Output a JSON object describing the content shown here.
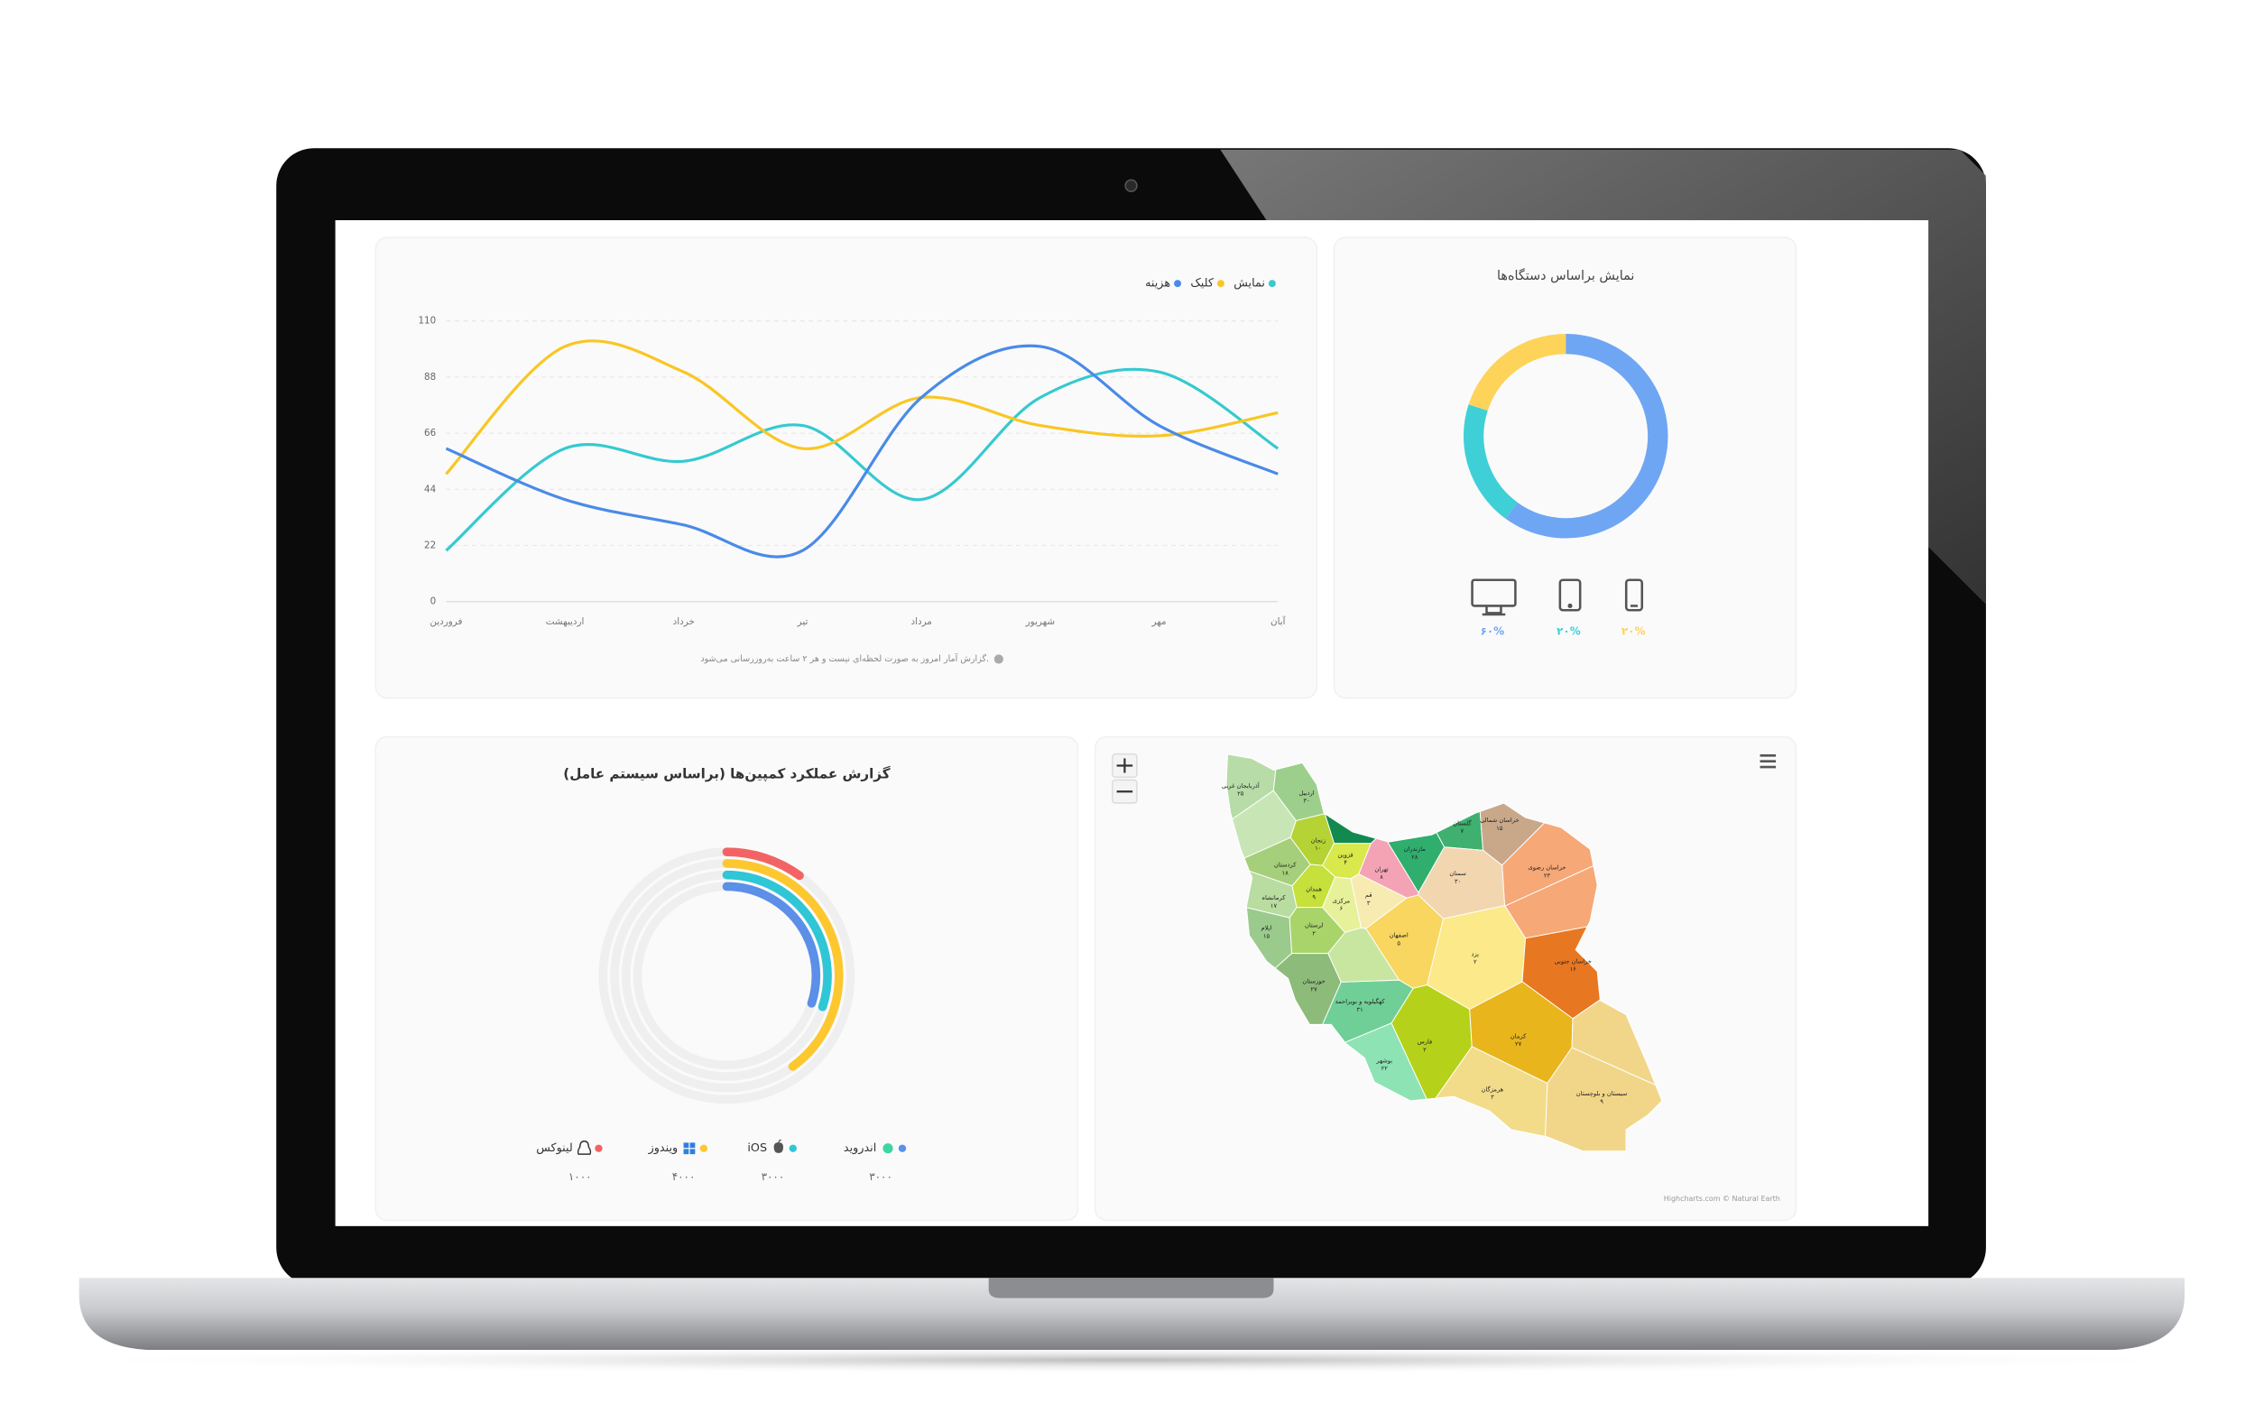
{
  "chart_data": [
    {
      "type": "line",
      "categories": [
        "فروردین",
        "اردیبهشت",
        "خرداد",
        "تیر",
        "مرداد",
        "شهریور",
        "مهر",
        "آبان"
      ],
      "series": [
        {
          "name": "نمایش",
          "color": "#36c9d0",
          "values": [
            20,
            60,
            55,
            69,
            40,
            80,
            90,
            60
          ]
        },
        {
          "name": "کلیک",
          "color": "#f9c623",
          "values": [
            50,
            100,
            90,
            60,
            80,
            69,
            65,
            74
          ]
        },
        {
          "name": "هزینه",
          "color": "#4a8ae8",
          "values": [
            60,
            40,
            30,
            20,
            80,
            100,
            69,
            50
          ]
        }
      ],
      "ylim": [
        0,
        110
      ],
      "yticks": [
        0,
        22,
        44,
        66,
        88,
        110
      ],
      "grid": true,
      "note": "گزارش آمار امروز به صورت لحظه‌ای نیست و هر ۲ ساعت به‌روزرسانی می‌شود."
    },
    {
      "type": "donut",
      "title": "نمایش براساس دستگاه‌ها",
      "values": [
        60,
        20,
        20
      ],
      "value_labels": [
        "۶۰%",
        "۲۰%",
        "۲۰%"
      ],
      "colors": [
        "#6fa6f4",
        "#3ed0d6",
        "#fdd35a"
      ]
    },
    {
      "type": "radial-bar",
      "title": "گزارش عملکرد کمپین‌ها (براساس سیستم عامل)",
      "categories": [
        "اندروید",
        "iOS",
        "ویندوز",
        "لینوکس"
      ],
      "values": [
        3000,
        3000,
        4000,
        1000
      ],
      "value_labels": [
        "۳۰۰۰",
        "۳۰۰۰",
        "۴۰۰۰",
        "۱۰۰۰"
      ],
      "colors": [
        "#5b8fe8",
        "#2fc6d6",
        "#fdc72f",
        "#f26464"
      ],
      "ylim": [
        0,
        10000
      ]
    }
  ],
  "map": {
    "regions": [
      {
        "name": "آذربایجان غربی",
        "label": "۲۵",
        "color": "#b7dca8"
      },
      {
        "name": "اردبیل",
        "label": "۳۰",
        "color": "#9ccf8c"
      },
      {
        "name": "زنجان",
        "label": "۱۰",
        "color": "#b5d334"
      },
      {
        "name": "قزوین",
        "label": "۴",
        "color": "#d9e84a"
      },
      {
        "name": "تهران",
        "label": "۸",
        "color": "#f4a3b5"
      },
      {
        "name": "مازندران",
        "label": "۲۸",
        "color": "#2fae6e"
      },
      {
        "name": "گلستان",
        "label": "۷",
        "color": "#3fb06f"
      },
      {
        "name": "خراسان شمالی",
        "label": "۱۵",
        "color": "#c9a88a"
      },
      {
        "name": "خراسان رضوی",
        "label": "۲۳",
        "color": "#f6a877"
      },
      {
        "name": "سمنان",
        "label": "۳۰",
        "color": "#f2d6b0"
      },
      {
        "name": "کردستان",
        "label": "۱۸",
        "color": "#a5cf7a"
      },
      {
        "name": "همدان",
        "label": "۹",
        "color": "#c6e03c"
      },
      {
        "name": "کرمانشاه",
        "label": "۱۷",
        "color": "#b9dca0"
      },
      {
        "name": "مرکزی",
        "label": "۶",
        "color": "#e7f19a"
      },
      {
        "name": "قم",
        "label": "۳",
        "color": "#f8ebb1"
      },
      {
        "name": "ایلام",
        "label": "۱۵",
        "color": "#9acb8c"
      },
      {
        "name": "لرستان",
        "label": "۲",
        "color": "#a9d46a"
      },
      {
        "name": "اصفهان",
        "label": "۵",
        "color": "#f8d65f"
      },
      {
        "name": "یزد",
        "label": "۲",
        "color": "#fbe98a"
      },
      {
        "name": "خراسان جنوبی",
        "label": "۱۶",
        "color": "#e87722"
      },
      {
        "name": "خوزستان",
        "label": "۲۷",
        "color": "#8dbb7a"
      },
      {
        "name": "کهگیلویه و بویراحمد",
        "label": "۳۱",
        "color": "#6fcf97"
      },
      {
        "name": "بوشهر",
        "label": "۲۲",
        "color": "#8ee3b4"
      },
      {
        "name": "فارس",
        "label": "۲",
        "color": "#b6d11a"
      },
      {
        "name": "کرمان",
        "label": "۲۷",
        "color": "#e8b51c"
      },
      {
        "name": "هرمزگان",
        "label": "۳",
        "color": "#f2dc8a"
      },
      {
        "name": "سیستان و بلوچستان",
        "label": "۹",
        "color": "#f1d68a"
      }
    ],
    "credit": "Highcharts.com © Natural Earth"
  }
}
